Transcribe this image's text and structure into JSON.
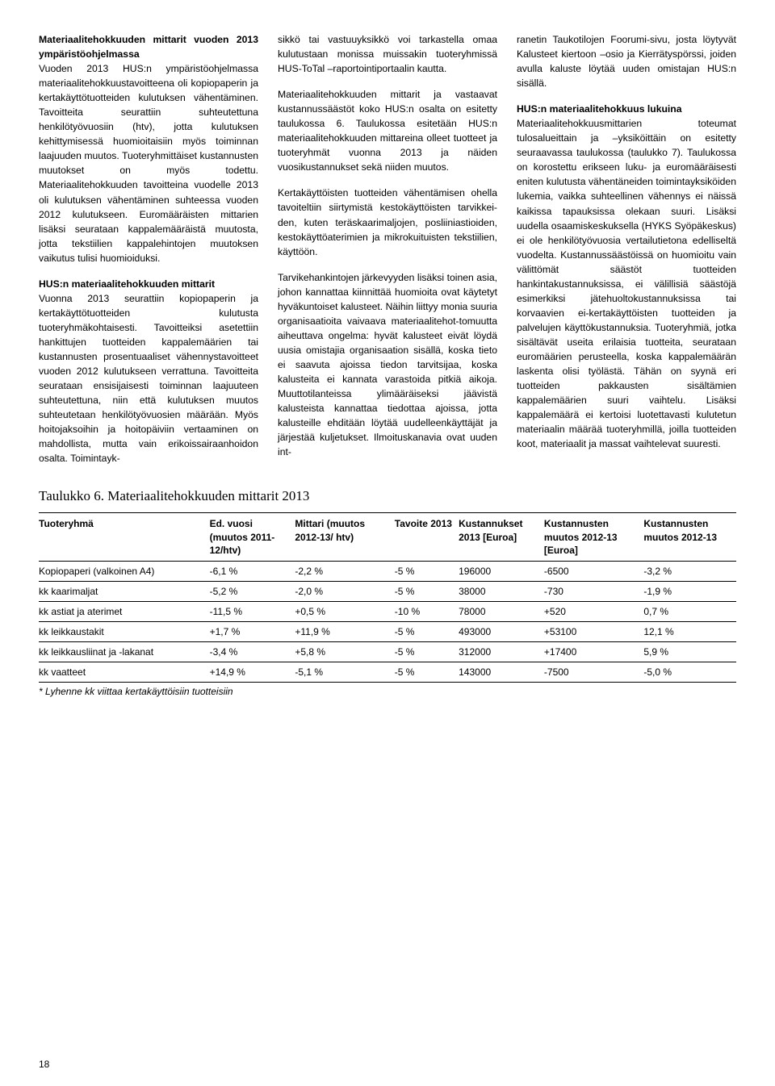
{
  "col1": {
    "h1": "Materiaalitehokkuuden mittarit vuoden 2013 ympäristöohjelmassa",
    "p1": "Vuoden 2013 HUS:n ympäristöohjelmassa materiaalitehokkuustavoitteena oli kopiopaperin ja kertakäyttötuotteiden kulutuksen vähentäminen. Tavoitteita seurattiin suhteutettuna henkilötyövuosiin (htv), jotta kulutuksen kehittymisessä huomioitaisiin myös toiminnan laajuuden muutos. Tuoteryhmittäiset kustannusten muutokset on myös todettu. Materiaalitehokkuuden tavoitteina vuodelle 2013 oli kulutuksen vähentäminen suhteessa vuoden 2012 kulutukseen. Euromääräisten mittarien lisäksi seurataan kappalemääräistä muutosta, jotta tekstiilien kappalehintojen muutoksen vaikutus tulisi huomioiduksi.",
    "h2": "HUS:n materiaalitehokkuuden mittarit",
    "p2": "Vuonna 2013 seurattiin kopiopaperin ja kertakäyttötuotteiden kulutusta tuoteryhmäkohtaisesti. Tavoitteiksi asetettiin hankittujen tuotteiden kappalemäärien tai kustannusten prosentuaaliset vähennystavoitteet vuoden 2012 kulutukseen verrattuna. Tavoitteita seurataan ensisijaisesti toiminnan laajuuteen suhteutettuna, niin että kulutuksen muutos suhteutetaan henkilötyövuosien määrään. Myös hoitojaksoihin ja hoitopäiviin vertaaminen on mahdollista, mutta vain erikoissairaanhoidon osalta. Toimintayk-"
  },
  "col2": {
    "p1": "sikkö tai vastuuyksikkö voi tarkastella omaa kulutustaan monissa muissakin tuoteryhmissä HUS-ToTal –raportointiportaalin kautta.",
    "p2": "Materiaalitehokkuuden mittarit ja vastaavat kustannussäästöt koko HUS:n osalta on esitetty taulukossa 6. Taulukossa esitetään HUS:n materiaalitehokkuuden mittareina olleet tuotteet ja tuoteryhmät vuonna 2013 ja näiden vuosikustannukset sekä niiden muutos.",
    "p3": "Kertakäyttöisten tuotteiden vähentämisen ohella tavoiteltiin siirtymistä kestokäyttöisten tarvikkei-den, kuten teräskaarimaljojen, posliiniastioiden, kestokäyttöaterimien ja mikrokuituisten tekstiilien, käyttöön.",
    "p4": "Tarvikehankintojen järkevyyden lisäksi toinen asia, johon kannattaa kiinnittää huomioita ovat käytetyt hyväkuntoiset kalusteet. Näihin liittyy monia suuria organisaatioita vaivaava materiaalitehot-tomuutta aiheuttava ongelma: hyvät kalusteet eivät löydä uusia omistajia organisaation sisällä, koska tieto ei saavuta ajoissa tiedon tarvitsijaa, koska kalusteita ei kannata varastoida pitkiä aikoja. Muuttotilanteissa ylimääräiseksi jäävistä kalusteista kannattaa tiedottaa ajoissa, jotta kalusteille ehditään löytää uudelleenkäyttäjät ja järjestää kuljetukset. Ilmoituskanavia ovat uuden int-"
  },
  "col3": {
    "p1": "ranetin Taukotilojen Foorumi-sivu, josta löytyvät Kalusteet kiertoon –osio ja Kierrätyspörssi, joiden avulla kaluste löytää uuden omistajan HUS:n sisällä.",
    "h1": "HUS:n materiaalitehokkuus lukuina",
    "p2": "Materiaalitehokkuusmittarien toteumat tulosalueittain ja –yksiköittäin on esitetty seuraavassa taulukossa (taulukko 7). Taulukossa on korostettu erikseen luku- ja euromääräisesti eniten kulutusta vähentäneiden toimintayksiköiden lukemia, vaikka suhteellinen vähennys ei näissä kaikissa tapauksissa olekaan suuri. Lisäksi uudella osaamiskeskuksella (HYKS Syöpäkeskus) ei ole henkilötyövuosia vertailutietona edelliseltä vuodelta. Kustannussäästöissä on huomioitu vain välittömät säästöt tuotteiden hankintakustannuksissa, ei välillisiä säästöjä esimerkiksi jätehuoltokustannuksissa tai korvaavien ei-kertakäyttöisten tuotteiden ja palvelujen käyttökustannuksia. Tuoteryhmiä, jotka sisältävät useita erilaisia tuotteita, seurataan euromäärien perusteella, koska kappalemäärän laskenta olisi työlästä. Tähän on syynä eri tuotteiden pakkausten sisältämien kappalemäärien suuri vaihtelu. Lisäksi kappalemäärä ei kertoisi luotettavasti kulutetun materiaalin määrää tuoteryhmillä, joilla tuotteiden koot, materiaalit ja massat vaihtelevat suuresti."
  },
  "tableCaption": "Taulukko 6. Materiaalitehokkuuden mittarit 2013",
  "table": {
    "headers": [
      "Tuoteryhmä",
      "Ed. vuosi (muutos 2011-12/htv)",
      "Mittari (muutos 2012-13/ htv)",
      "Tavoite 2013",
      "Kustannukset 2013 [Euroa]",
      "Kustannusten muutos 2012-13 [Euroa]",
      "Kustannusten muutos 2012-13"
    ],
    "rows": [
      [
        "Kopiopaperi (valkoinen A4)",
        "-6,1 %",
        "-2,2 %",
        "-5 %",
        "196000",
        "-6500",
        "-3,2 %"
      ],
      [
        "kk kaarimaljat",
        "-5,2 %",
        "-2,0 %",
        "-5 %",
        "38000",
        "-730",
        "-1,9 %"
      ],
      [
        "kk astiat ja aterimet",
        "-11,5 %",
        "+0,5 %",
        "-10 %",
        "78000",
        "+520",
        "0,7 %"
      ],
      [
        "kk leikkaustakit",
        "+1,7 %",
        "+11,9 %",
        "-5 %",
        "493000",
        "+53100",
        "12,1 %"
      ],
      [
        "kk leikkausliinat ja -lakanat",
        "-3,4 %",
        "+5,8 %",
        "-5 %",
        "312000",
        "+17400",
        "5,9 %"
      ],
      [
        "kk vaatteet",
        "+14,9 %",
        "-5,1 %",
        "-5 %",
        "143000",
        "-7500",
        "-5,0 %"
      ]
    ],
    "footnote": "* Lyhenne kk viittaa kertakäyttöisiin tuotteisiin"
  },
  "pageNumber": "18"
}
